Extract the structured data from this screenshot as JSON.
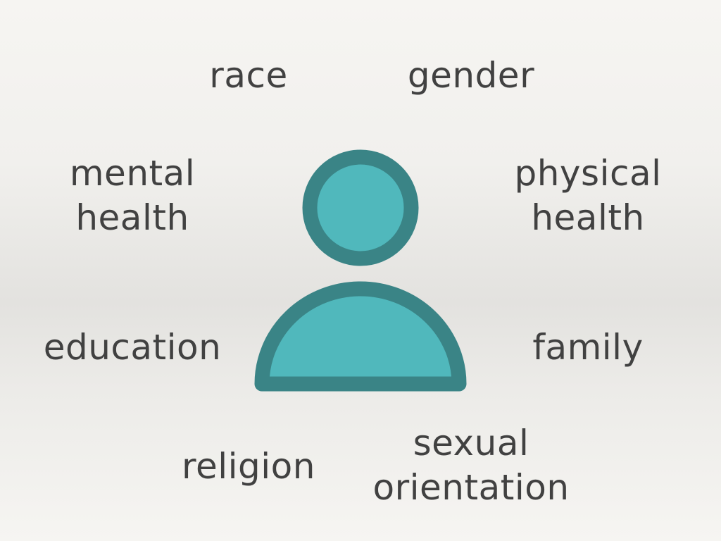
{
  "diagram": {
    "colors": {
      "icon_fill": "#50b8bc",
      "icon_outline": "#3a8486",
      "text": "#414141"
    },
    "center_icon": "person-icon",
    "terms": {
      "race": "race",
      "gender": "gender",
      "mental_health": [
        "mental",
        "health"
      ],
      "physical_health": [
        "physical",
        "health"
      ],
      "education": "education",
      "family": "family",
      "religion": "religion",
      "sexual_orientation": [
        "sexual",
        "orientation"
      ]
    }
  }
}
